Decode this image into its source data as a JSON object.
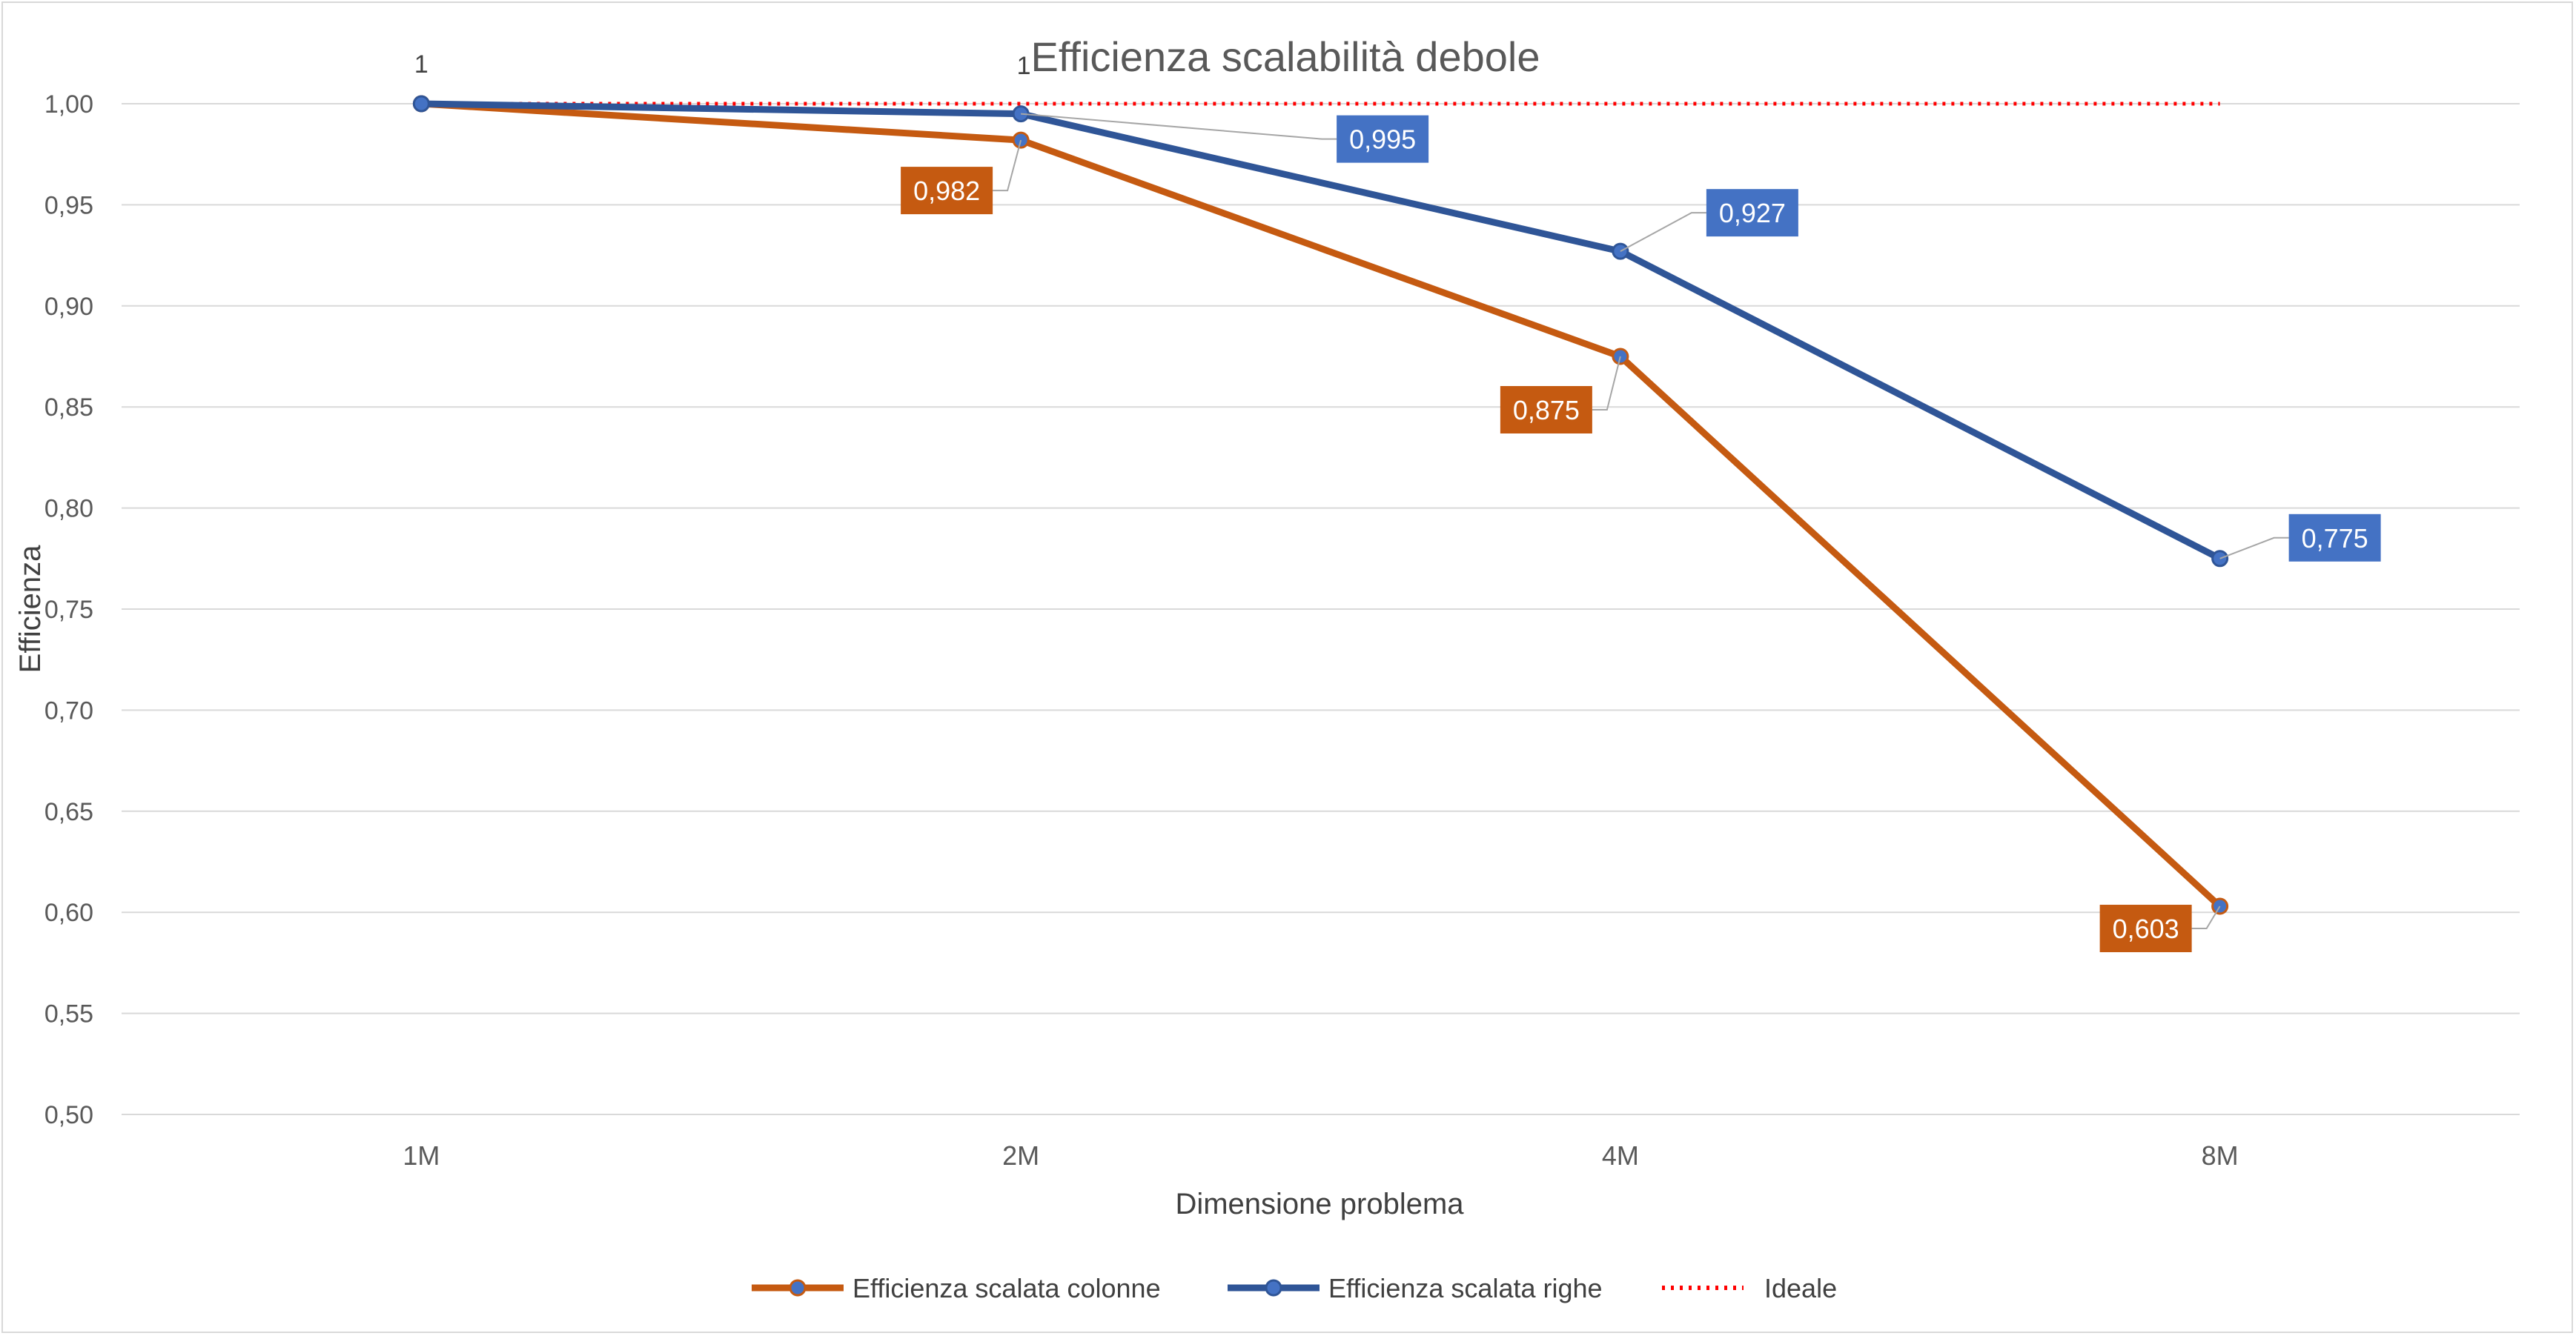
{
  "chart_data": {
    "type": "line",
    "title": "Efficienza scalabilità debole",
    "xlabel": "Dimensione problema",
    "ylabel": "Efficienza",
    "categories": [
      "1M",
      "2M",
      "4M",
      "8M"
    ],
    "ylim": [
      0.5,
      1.0
    ],
    "yticks": [
      "0,50",
      "0,55",
      "0,60",
      "0,65",
      "0,70",
      "0,75",
      "0,80",
      "0,85",
      "0,90",
      "0,95",
      "1,00"
    ],
    "grid": true,
    "legend_position": "bottom",
    "series": [
      {
        "name": "Efficienza scalata colonne",
        "values": [
          1,
          0.982,
          0.875,
          0.603
        ],
        "labels": [
          "",
          "0,982",
          "0,875",
          "0,603"
        ],
        "color": "#C55A11",
        "style": "solid-marker"
      },
      {
        "name": "Efficienza scalata righe",
        "values": [
          1,
          0.995,
          0.927,
          0.775
        ],
        "labels": [
          "1",
          "0,995",
          "0,927",
          "0,775"
        ],
        "color": "#2F5597",
        "label_bg": "#4472C4",
        "style": "solid-marker"
      },
      {
        "name": "Ideale",
        "values": [
          1,
          1,
          1,
          1
        ],
        "labels": [
          "",
          "1",
          "",
          ""
        ],
        "color": "#FF0000",
        "style": "dotted"
      }
    ]
  }
}
